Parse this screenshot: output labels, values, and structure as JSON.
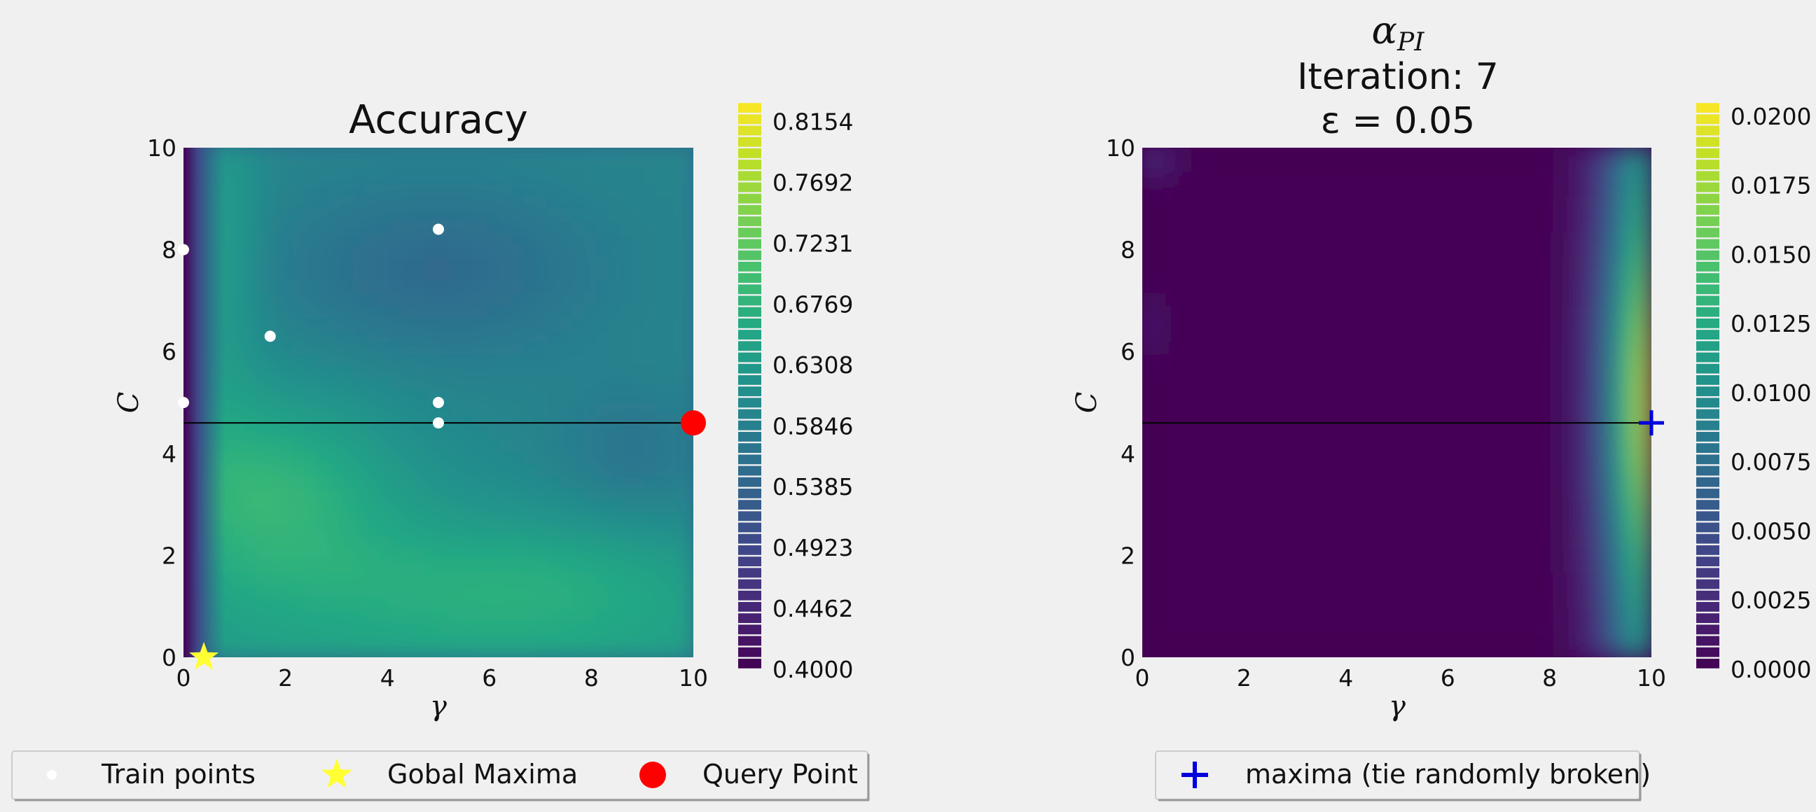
{
  "chart_data": [
    {
      "type": "heatmap",
      "title": "Accuracy",
      "xlabel": "γ",
      "ylabel": "C",
      "xlim": [
        0,
        10
      ],
      "ylim": [
        0,
        10
      ],
      "xticks": [
        "0",
        "2",
        "4",
        "6",
        "8",
        "10"
      ],
      "yticks": [
        "0",
        "2",
        "4",
        "6",
        "8",
        "10"
      ],
      "colormap": "viridis",
      "colorbar": {
        "min": 0.4,
        "max": 0.83,
        "ticks": [
          "0.4000",
          "0.4462",
          "0.4923",
          "0.5385",
          "0.5846",
          "0.6308",
          "0.6769",
          "0.7231",
          "0.7692",
          "0.8154"
        ]
      },
      "train_points": [
        {
          "x": 0.0,
          "y": 8.0
        },
        {
          "x": 0.0,
          "y": 5.0
        },
        {
          "x": 1.7,
          "y": 6.3
        },
        {
          "x": 5.0,
          "y": 8.4
        },
        {
          "x": 5.0,
          "y": 5.0
        },
        {
          "x": 5.0,
          "y": 4.6
        }
      ],
      "global_maxima": {
        "x": 0.4,
        "y": 0.0
      },
      "query_point": {
        "x": 10.0,
        "y": 4.6
      },
      "query_line_y": 4.6,
      "legend": [
        {
          "marker": "white-dot",
          "label": "Train points"
        },
        {
          "marker": "yellow-star",
          "label": "Gobal Maxima"
        },
        {
          "marker": "red-dot",
          "label": "Query Point"
        }
      ]
    },
    {
      "type": "heatmap",
      "title_symbol": "α",
      "title_subscript": "PI",
      "title_line2": "Iteration: 7",
      "title_line3": "ε = 0.05",
      "xlabel": "γ",
      "ylabel": "C",
      "xlim": [
        0,
        10
      ],
      "ylim": [
        0,
        10
      ],
      "xticks": [
        "0",
        "2",
        "4",
        "6",
        "8",
        "10"
      ],
      "yticks": [
        "0",
        "2",
        "4",
        "6",
        "8",
        "10"
      ],
      "colormap": "viridis",
      "colorbar": {
        "min": 0.0,
        "max": 0.0205,
        "ticks": [
          "0.0000",
          "0.0025",
          "0.0050",
          "0.0075",
          "0.0100",
          "0.0125",
          "0.0150",
          "0.0175",
          "0.0200"
        ]
      },
      "maxima_point": {
        "x": 10.0,
        "y": 4.6
      },
      "query_line_y": 4.6,
      "legend": [
        {
          "marker": "blue-plus",
          "label": "maxima (tie randomly broken)"
        }
      ]
    }
  ],
  "colors": {
    "background": "#f0f0f0",
    "train_point": "#ffffff",
    "global_maxima": "#ffff33",
    "query_point": "#ff0000",
    "maxima_marker": "#0000dd",
    "query_line": "#000000"
  }
}
